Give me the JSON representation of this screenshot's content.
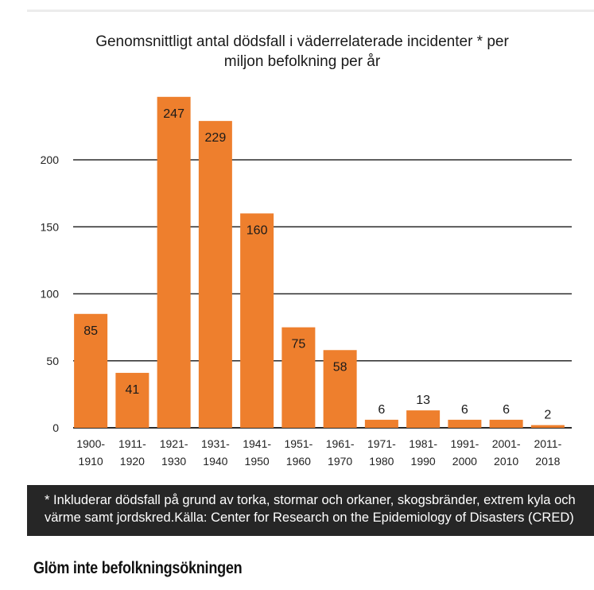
{
  "chart_data": {
    "type": "bar",
    "title_lines": [
      "Genomsnittligt antal dödsfall i väderrelaterade incidenter * per",
      "miljon befolkning per år"
    ],
    "categories": [
      [
        "1900-",
        "1910"
      ],
      [
        "1911-",
        "1920"
      ],
      [
        "1921-",
        "1930"
      ],
      [
        "1931-",
        "1940"
      ],
      [
        "1941-",
        "1950"
      ],
      [
        "1951-",
        "1960"
      ],
      [
        "1961-",
        "1970"
      ],
      [
        "1971-",
        "1980"
      ],
      [
        "1981-",
        "1990"
      ],
      [
        "1991-",
        "2000"
      ],
      [
        "2001-",
        "2010"
      ],
      [
        "2011-",
        "2018"
      ]
    ],
    "values": [
      85,
      41,
      247,
      229,
      160,
      75,
      58,
      6,
      13,
      6,
      6,
      2
    ],
    "data_labels": [
      "85",
      "41",
      "247",
      "229",
      "160",
      "75",
      "58",
      "6",
      "13",
      "6",
      "6",
      "2"
    ],
    "y_ticks": [
      0,
      50,
      100,
      150,
      200
    ],
    "ylim": [
      0,
      250
    ],
    "grid": true,
    "bar_color": "#ee7f2d",
    "grid_color": "#2a2a2a"
  },
  "footnote": {
    "line1": "* Inkluderar dödsfall på grund av torka, stormar och orkaner, skogsbränder, extrem kyla och",
    "line2": "värme samt jordskred.Källa: Center for Research on the Epidemiology of Disasters (CRED)"
  },
  "section_heading": "Glöm inte befolkningsökningen"
}
